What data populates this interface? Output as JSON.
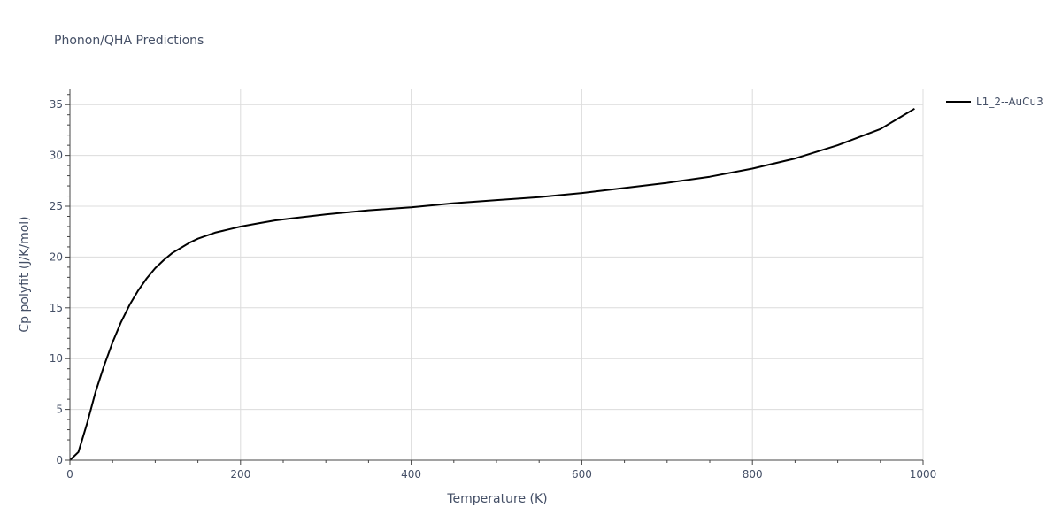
{
  "chart_data": {
    "type": "line",
    "title": "Phonon/QHA Predictions",
    "xlabel": "Temperature (K)",
    "ylabel": "Cp polyfit (J/K/mol)",
    "xlim": [
      0,
      1000
    ],
    "ylim": [
      0,
      36.5
    ],
    "xticks": [
      0,
      200,
      400,
      600,
      800,
      1000
    ],
    "xtick_labels": [
      "0",
      "200",
      "400",
      "600",
      "800",
      "1000"
    ],
    "yticks": [
      0,
      5,
      10,
      15,
      20,
      25,
      30,
      35
    ],
    "ytick_labels": [
      "0",
      "5",
      "10",
      "15",
      "20",
      "25",
      "30",
      "35"
    ],
    "grid": true,
    "legend_position": "top-right",
    "series": [
      {
        "name": "L1_2--AuCu3",
        "color": "#000000",
        "x": [
          0,
          10,
          20,
          30,
          40,
          50,
          60,
          70,
          80,
          90,
          100,
          110,
          120,
          130,
          140,
          150,
          160,
          170,
          180,
          190,
          200,
          220,
          240,
          260,
          280,
          300,
          350,
          400,
          450,
          500,
          550,
          600,
          650,
          700,
          750,
          800,
          850,
          900,
          950,
          990
        ],
        "y": [
          0,
          0.8,
          3.6,
          6.7,
          9.3,
          11.6,
          13.6,
          15.3,
          16.7,
          17.9,
          18.9,
          19.7,
          20.4,
          20.9,
          21.4,
          21.8,
          22.1,
          22.4,
          22.6,
          22.8,
          23.0,
          23.3,
          23.6,
          23.8,
          24.0,
          24.2,
          24.6,
          24.9,
          25.3,
          25.6,
          25.9,
          26.3,
          26.8,
          27.3,
          27.9,
          28.7,
          29.7,
          31.0,
          32.6,
          34.6
        ]
      }
    ]
  }
}
